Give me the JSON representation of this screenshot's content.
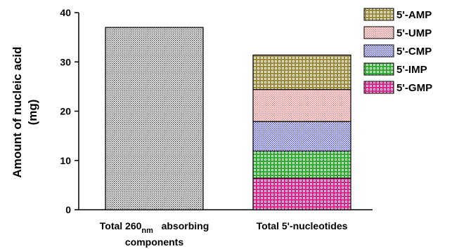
{
  "chart_data": {
    "type": "bar",
    "stacked": true,
    "ylabel_line1": "Amount of nucleic acid",
    "ylabel_line2": "(mg)",
    "ylim": [
      0,
      40
    ],
    "yticks": [
      "0",
      "10",
      "20",
      "30",
      "40"
    ],
    "categories": [
      {
        "pre": "Total 260",
        "sub": "nm",
        "post": " absorbing",
        "line2": "components"
      },
      {
        "pre": "Total 5'-nucleotides",
        "sub": "",
        "post": "",
        "line2": ""
      }
    ],
    "bars": [
      {
        "category": 0,
        "segments": [
          {
            "series": "Total 260nm absorbing components",
            "value": 37.0,
            "color": "#bdbdbd",
            "pattern": "fine-dots"
          }
        ]
      },
      {
        "category": 1,
        "segments": [
          {
            "series": "5'-GMP",
            "value": 6.4,
            "color": "#e0218a",
            "pattern": "check"
          },
          {
            "series": "5'-IMP",
            "value": 5.5,
            "color": "#2eaa2e",
            "pattern": "check"
          },
          {
            "series": "5'-CMP",
            "value": 6.0,
            "color": "#3b3bdc",
            "pattern": "dots"
          },
          {
            "series": "5'-UMP",
            "value": 6.5,
            "color": "#f07070",
            "pattern": "dots"
          },
          {
            "series": "5'-AMP",
            "value": 7.0,
            "color": "#9c8a3c",
            "pattern": "check"
          }
        ]
      }
    ],
    "legend": {
      "placement": "top-right",
      "entries": [
        {
          "label": "5'-AMP",
          "color": "#9c8a3c",
          "pattern": "check"
        },
        {
          "label": "5'-UMP",
          "color": "#f07070",
          "pattern": "dots"
        },
        {
          "label": "5'-CMP",
          "color": "#3b3bdc",
          "pattern": "dots"
        },
        {
          "label": "5'-IMP",
          "color": "#2eaa2e",
          "pattern": "check"
        },
        {
          "label": "5'-GMP",
          "color": "#e0218a",
          "pattern": "check"
        }
      ]
    },
    "grid": false
  }
}
